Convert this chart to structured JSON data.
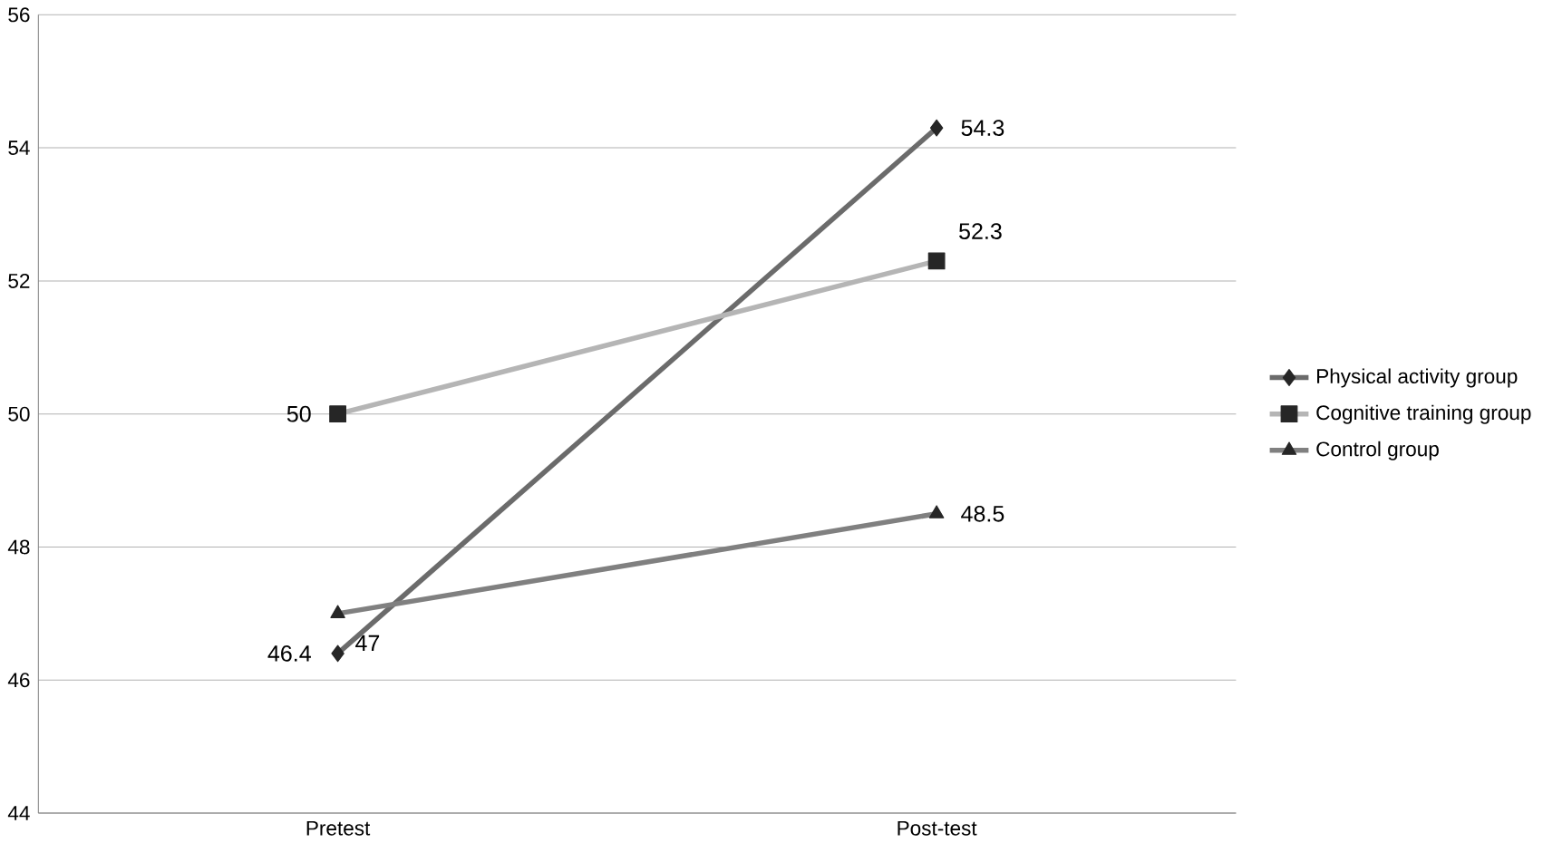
{
  "chart_data": {
    "type": "line",
    "categories": [
      "Pretest",
      "Post-test"
    ],
    "series": [
      {
        "name": "Physical activity group",
        "color": "#6b6b6b",
        "marker": "diamond",
        "values": [
          46.4,
          54.3
        ]
      },
      {
        "name": "Cognitive training group",
        "color": "#b5b5b5",
        "marker": "square",
        "values": [
          50,
          52.3
        ]
      },
      {
        "name": "Control group",
        "color": "#808080",
        "marker": "triangle",
        "values": [
          47,
          48.5
        ]
      }
    ],
    "ylim": [
      44,
      56
    ],
    "yticks": [
      44,
      46,
      48,
      50,
      52,
      54,
      56
    ],
    "grid": "y",
    "legend": "right",
    "data_labels": true,
    "line_style": "solid"
  }
}
